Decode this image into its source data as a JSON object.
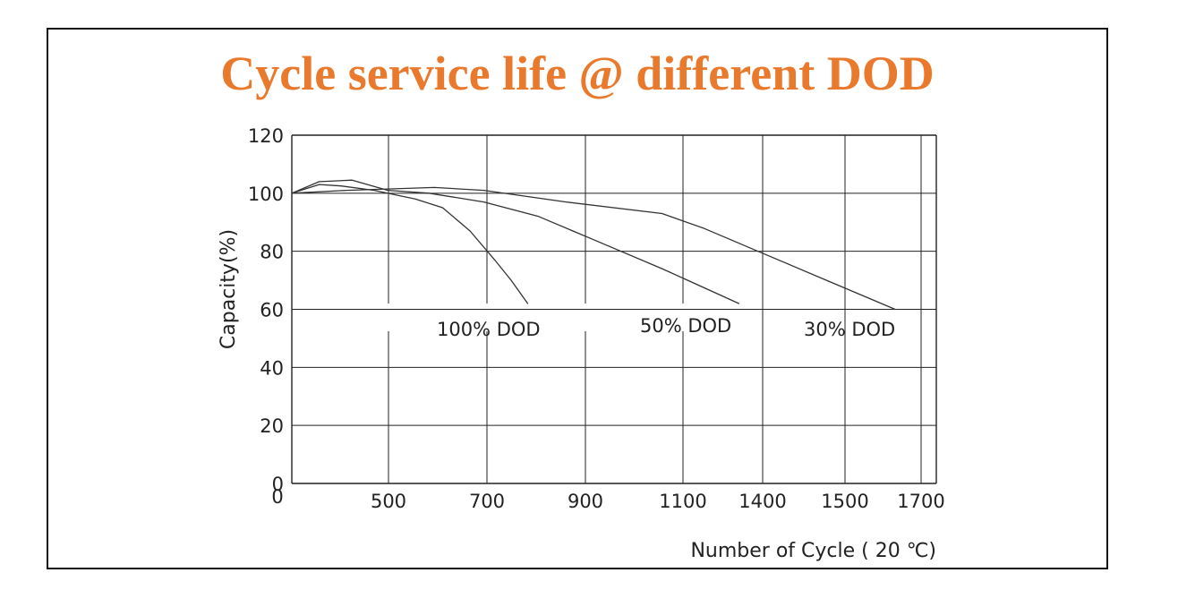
{
  "chart_data": {
    "type": "line",
    "title": "Cycle service life @ different DOD",
    "xlabel": "Number of Cycle ( 20 ℃)",
    "ylabel": "Capacity(%)",
    "x_tick_labels": [
      "500",
      "700",
      "900",
      "1100",
      "1400",
      "1500",
      "1700"
    ],
    "y_ticks": [
      0,
      20,
      40,
      60,
      80,
      100,
      120
    ],
    "ylim": [
      0,
      120
    ],
    "x_origin_label": "0",
    "x_scale_note": "irregular category-like tick spacing",
    "grid": true,
    "series": [
      {
        "name": "100% DOD",
        "points": [
          [
            0,
            100
          ],
          [
            100,
            103
          ],
          [
            180,
            102.5
          ],
          [
            300,
            101
          ],
          [
            450,
            98
          ],
          [
            550,
            95
          ],
          [
            650,
            87
          ],
          [
            740,
            77
          ],
          [
            800,
            70
          ],
          [
            860,
            62
          ]
        ]
      },
      {
        "name": "50% DOD",
        "points": [
          [
            0,
            100
          ],
          [
            100,
            104
          ],
          [
            220,
            104.5
          ],
          [
            350,
            101
          ],
          [
            500,
            100
          ],
          [
            700,
            97
          ],
          [
            900,
            92
          ],
          [
            1100,
            84
          ],
          [
            1350,
            74
          ],
          [
            1630,
            62
          ]
        ]
      },
      {
        "name": "30% DOD",
        "points": [
          [
            0,
            100
          ],
          [
            200,
            101
          ],
          [
            520,
            102
          ],
          [
            700,
            101
          ],
          [
            1000,
            97
          ],
          [
            1350,
            93
          ],
          [
            1500,
            88
          ],
          [
            1700,
            80
          ],
          [
            1950,
            70
          ],
          [
            2200,
            60
          ]
        ]
      }
    ],
    "colors": {
      "title": "#e97a2d",
      "axis": "#222222",
      "grid": "#222222",
      "line": "#333333"
    }
  }
}
